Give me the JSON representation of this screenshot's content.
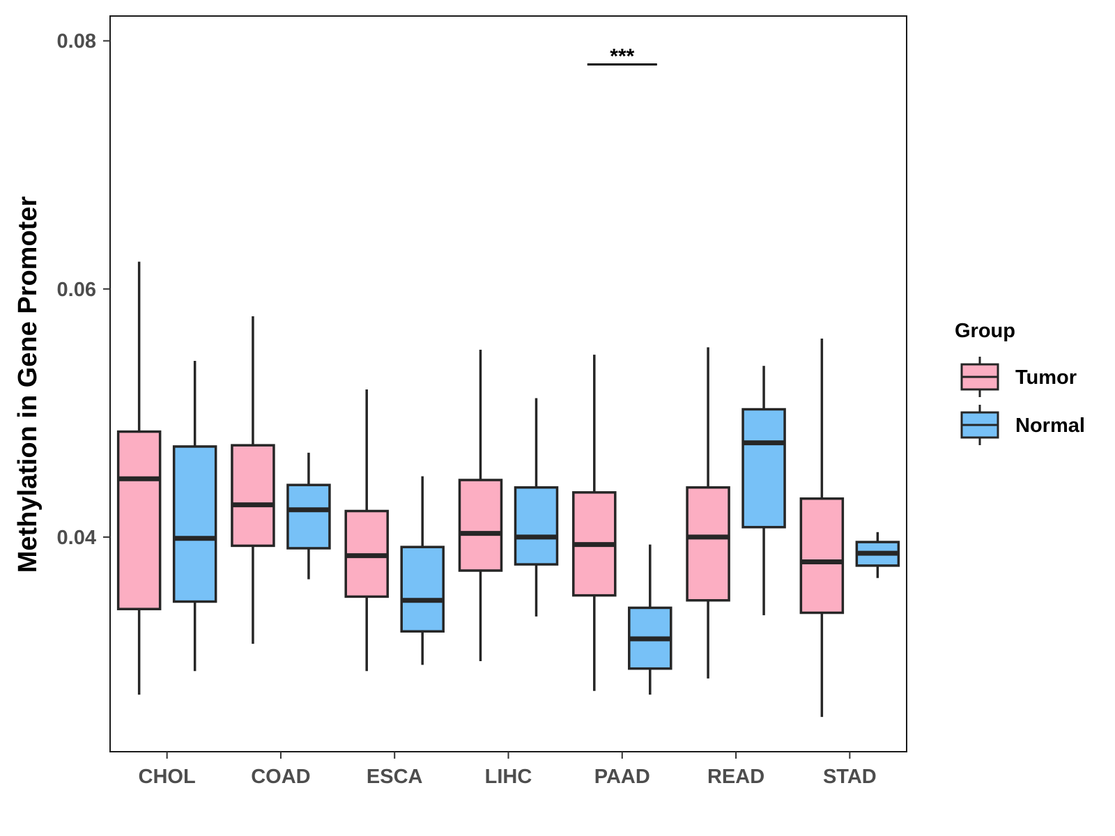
{
  "chart_data": {
    "type": "boxplot",
    "title": "",
    "xlabel": "",
    "ylabel": "Methylation in Gene Promoter",
    "ylim": [
      0.0227,
      0.082
    ],
    "yticks": [
      0.04,
      0.06,
      0.08
    ],
    "ytick_labels": [
      "0.04",
      "0.06",
      "0.08"
    ],
    "categories": [
      "CHOL",
      "COAD",
      "ESCA",
      "LIHC",
      "PAAD",
      "READ",
      "STAD"
    ],
    "legend": {
      "title": "Group",
      "position": "right",
      "entries": [
        {
          "label": "Tumor",
          "color": "#fcaec2"
        },
        {
          "label": "Normal",
          "color": "#77c1f7"
        }
      ]
    },
    "series": [
      {
        "name": "Tumor",
        "color": "#fcaec2",
        "boxes": [
          {
            "category": "CHOL",
            "min": 0.0273,
            "q1": 0.0342,
            "median": 0.0447,
            "q3": 0.0485,
            "max": 0.0622
          },
          {
            "category": "COAD",
            "min": 0.0314,
            "q1": 0.0393,
            "median": 0.0426,
            "q3": 0.0474,
            "max": 0.0578
          },
          {
            "category": "ESCA",
            "min": 0.0292,
            "q1": 0.0352,
            "median": 0.0385,
            "q3": 0.0421,
            "max": 0.0519
          },
          {
            "category": "LIHC",
            "min": 0.03,
            "q1": 0.0373,
            "median": 0.0403,
            "q3": 0.0446,
            "max": 0.0551
          },
          {
            "category": "PAAD",
            "min": 0.0276,
            "q1": 0.0353,
            "median": 0.0394,
            "q3": 0.0436,
            "max": 0.0547
          },
          {
            "category": "READ",
            "min": 0.0286,
            "q1": 0.0349,
            "median": 0.04,
            "q3": 0.044,
            "max": 0.0553
          },
          {
            "category": "STAD",
            "min": 0.0255,
            "q1": 0.0339,
            "median": 0.038,
            "q3": 0.0431,
            "max": 0.056
          }
        ]
      },
      {
        "name": "Normal",
        "color": "#77c1f7",
        "boxes": [
          {
            "category": "CHOL",
            "min": 0.0292,
            "q1": 0.0348,
            "median": 0.0399,
            "q3": 0.0473,
            "max": 0.0542
          },
          {
            "category": "COAD",
            "min": 0.0366,
            "q1": 0.0391,
            "median": 0.0422,
            "q3": 0.0442,
            "max": 0.0468
          },
          {
            "category": "ESCA",
            "min": 0.0297,
            "q1": 0.0324,
            "median": 0.0349,
            "q3": 0.0392,
            "max": 0.0449
          },
          {
            "category": "LIHC",
            "min": 0.0336,
            "q1": 0.0378,
            "median": 0.04,
            "q3": 0.044,
            "max": 0.0512
          },
          {
            "category": "PAAD",
            "min": 0.0273,
            "q1": 0.0294,
            "median": 0.0318,
            "q3": 0.0343,
            "max": 0.0394
          },
          {
            "category": "READ",
            "min": 0.0337,
            "q1": 0.0408,
            "median": 0.0476,
            "q3": 0.0503,
            "max": 0.0538
          },
          {
            "category": "STAD",
            "min": 0.0367,
            "q1": 0.0377,
            "median": 0.0387,
            "q3": 0.0396,
            "max": 0.0404
          }
        ]
      }
    ],
    "annotations": [
      {
        "category": "PAAD",
        "text": "***",
        "y": 0.0781
      }
    ]
  }
}
